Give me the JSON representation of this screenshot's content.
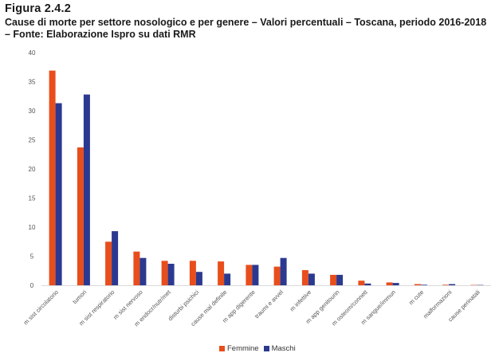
{
  "figure_label": "Figura 2.4.2",
  "caption": "Cause di morte per settore nosologico e per genere – Valori percentuali – Toscana, periodo 2016-2018 – Fonte: Elaborazione Ispro su dati RMR",
  "colors": {
    "femmine": "#e84e1b",
    "maschi": "#2b3990"
  },
  "chart_data": {
    "type": "bar",
    "title": "",
    "xlabel": "",
    "ylabel": "",
    "ylim": [
      0,
      40
    ],
    "yticks": [
      0,
      5,
      10,
      15,
      20,
      25,
      30,
      35,
      40
    ],
    "grid": false,
    "legend_position": "bottom",
    "categories": [
      "m sist circolatorio",
      "tumori",
      "m sist respiratorio",
      "m sist nervoso",
      "m endocr/nutr/met",
      "disturbi psichici",
      "cause mal definite",
      "m app digerente",
      "traumi e avvel",
      "m infettive",
      "m app genitourin",
      "m osteom/connett",
      "m sangue/immun",
      "m cute",
      "malformazioni",
      "cause perinatali"
    ],
    "series": [
      {
        "name": "Femmine",
        "values": [
          36.9,
          23.7,
          7.5,
          5.8,
          4.2,
          4.2,
          4.1,
          3.5,
          3.2,
          2.6,
          1.8,
          0.8,
          0.5,
          0.2,
          0.1,
          0.05
        ]
      },
      {
        "name": "Maschi",
        "values": [
          31.3,
          32.8,
          9.3,
          4.7,
          3.7,
          2.3,
          2.0,
          3.5,
          4.7,
          2.0,
          1.8,
          0.3,
          0.4,
          0.1,
          0.2,
          0.05
        ]
      }
    ]
  }
}
